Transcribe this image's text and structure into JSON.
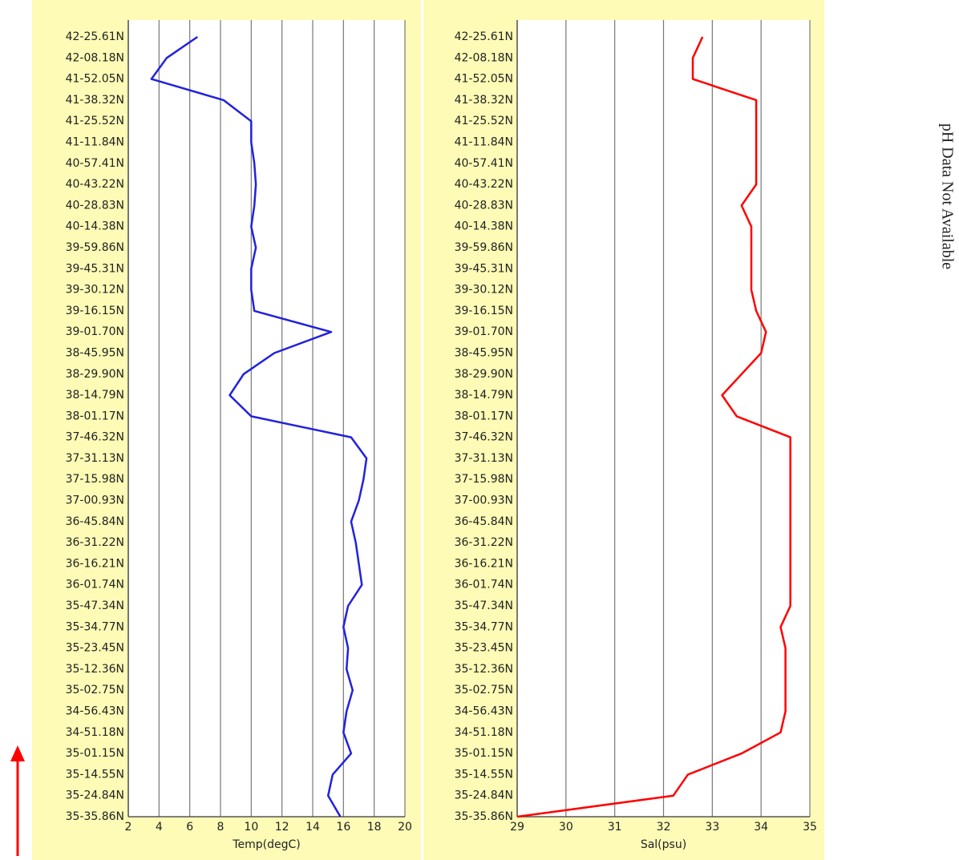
{
  "chart_data": [
    {
      "type": "line",
      "xlabel": "Temp(degC)",
      "categories": [
        "42-25.61N",
        "42-08.18N",
        "41-52.05N",
        "41-38.32N",
        "41-25.52N",
        "41-11.84N",
        "40-57.41N",
        "40-43.22N",
        "40-28.83N",
        "40-14.38N",
        "39-59.86N",
        "39-45.31N",
        "39-30.12N",
        "39-16.15N",
        "39-01.70N",
        "38-45.95N",
        "38-29.90N",
        "38-14.79N",
        "38-01.17N",
        "37-46.32N",
        "37-31.13N",
        "37-15.98N",
        "37-00.93N",
        "36-45.84N",
        "36-31.22N",
        "36-16.21N",
        "36-01.74N",
        "35-47.34N",
        "35-34.77N",
        "35-23.45N",
        "35-12.36N",
        "35-02.75N",
        "34-56.43N",
        "34-51.18N",
        "35-01.15N",
        "35-14.55N",
        "35-24.84N",
        "35-35.86N"
      ],
      "series": [
        {
          "name": "Temp",
          "color": "#2222dd",
          "values": [
            6.5,
            4.5,
            3.5,
            8.2,
            10,
            10,
            10.2,
            10.3,
            10.2,
            10,
            10.3,
            10,
            10,
            10.2,
            15.2,
            11.5,
            9.5,
            8.6,
            10,
            16.5,
            17.5,
            17.3,
            17,
            16.5,
            16.8,
            17,
            17.2,
            16.3,
            16,
            16.3,
            16.2,
            16.6,
            16.2,
            16,
            16.5,
            15.3,
            15,
            15.8
          ]
        }
      ],
      "xlim": [
        2,
        20
      ],
      "xticks": [
        2,
        4,
        6,
        8,
        10,
        12,
        14,
        16,
        18,
        20
      ],
      "grid": true
    },
    {
      "type": "line",
      "xlabel": "Sal(psu)",
      "categories": [
        "42-25.61N",
        "42-08.18N",
        "41-52.05N",
        "41-38.32N",
        "41-25.52N",
        "41-11.84N",
        "40-57.41N",
        "40-43.22N",
        "40-28.83N",
        "40-14.38N",
        "39-59.86N",
        "39-45.31N",
        "39-30.12N",
        "39-16.15N",
        "39-01.70N",
        "38-45.95N",
        "38-29.90N",
        "38-14.79N",
        "38-01.17N",
        "37-46.32N",
        "37-31.13N",
        "37-15.98N",
        "37-00.93N",
        "36-45.84N",
        "36-31.22N",
        "36-16.21N",
        "36-01.74N",
        "35-47.34N",
        "35-34.77N",
        "35-23.45N",
        "35-12.36N",
        "35-02.75N",
        "34-56.43N",
        "34-51.18N",
        "35-01.15N",
        "35-14.55N",
        "35-24.84N",
        "35-35.86N"
      ],
      "series": [
        {
          "name": "Sal",
          "color": "#ff0000",
          "values": [
            32.8,
            32.6,
            32.6,
            33.9,
            33.9,
            33.9,
            33.9,
            33.9,
            33.6,
            33.8,
            33.8,
            33.8,
            33.8,
            33.9,
            34.1,
            34.0,
            33.6,
            33.2,
            33.5,
            34.6,
            34.6,
            34.6,
            34.6,
            34.6,
            34.6,
            34.6,
            34.6,
            34.6,
            34.4,
            34.5,
            34.5,
            34.5,
            34.5,
            34.4,
            33.6,
            32.5,
            32.2,
            29.0
          ]
        }
      ],
      "xlim": [
        29,
        35
      ],
      "xticks": [
        29,
        30,
        31,
        32,
        33,
        34,
        35
      ],
      "grid": true
    }
  ],
  "side_note": "pH Data Not Available"
}
